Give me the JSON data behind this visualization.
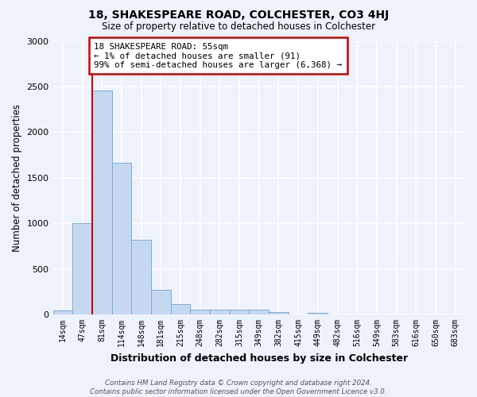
{
  "title": "18, SHAKESPEARE ROAD, COLCHESTER, CO3 4HJ",
  "subtitle": "Size of property relative to detached houses in Colchester",
  "xlabel": "Distribution of detached houses by size in Colchester",
  "ylabel": "Number of detached properties",
  "bar_labels": [
    "14sqm",
    "47sqm",
    "81sqm",
    "114sqm",
    "148sqm",
    "181sqm",
    "215sqm",
    "248sqm",
    "282sqm",
    "315sqm",
    "349sqm",
    "382sqm",
    "415sqm",
    "449sqm",
    "482sqm",
    "516sqm",
    "549sqm",
    "583sqm",
    "616sqm",
    "650sqm",
    "683sqm"
  ],
  "bar_values": [
    40,
    1000,
    2460,
    1660,
    820,
    270,
    115,
    50,
    50,
    50,
    50,
    30,
    0,
    20,
    0,
    0,
    0,
    0,
    0,
    0,
    0
  ],
  "bar_color": "#c5d8f0",
  "bar_edgecolor": "#7aaedb",
  "vline_color": "#cc0000",
  "ylim": [
    0,
    3000
  ],
  "yticks": [
    0,
    500,
    1000,
    1500,
    2000,
    2500,
    3000
  ],
  "annotation_title": "18 SHAKESPEARE ROAD: 55sqm",
  "annotation_line1": "← 1% of detached houses are smaller (91)",
  "annotation_line2": "99% of semi-detached houses are larger (6,368) →",
  "annotation_box_color": "#cc0000",
  "footer_line1": "Contains HM Land Registry data © Crown copyright and database right 2024.",
  "footer_line2": "Contains public sector information licensed under the Open Government Licence v3.0.",
  "background_color": "#eef2fa",
  "grid_color": "#ffffff"
}
